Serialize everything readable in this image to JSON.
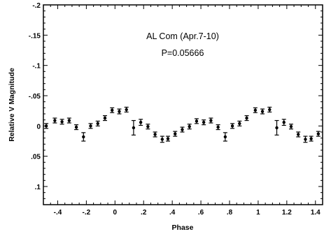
{
  "chart_data": {
    "type": "scatter",
    "title": "",
    "annotations": [
      "AL Com (Apr.7-10)",
      "P=0.05666"
    ],
    "xlabel": "Phase",
    "ylabel": "Relative V Magnitude",
    "xlim": [
      -0.5,
      1.45
    ],
    "ylim": [
      -0.2,
      0.13
    ],
    "y_inverted": true,
    "grid": false,
    "legend": "none",
    "x_tick_labels": [
      {
        "value": -0.4,
        "label": "-.4"
      },
      {
        "value": -0.2,
        "label": "-.2"
      },
      {
        "value": 0,
        "label": "0"
      },
      {
        "value": 0.2,
        "label": ".2"
      },
      {
        "value": 0.4,
        "label": ".4"
      },
      {
        "value": 0.6,
        "label": ".6"
      },
      {
        "value": 0.8,
        "label": ".8"
      },
      {
        "value": 1,
        "label": "1"
      },
      {
        "value": 1.2,
        "label": "1.2"
      },
      {
        "value": 1.4,
        "label": "1.4"
      }
    ],
    "y_tick_labels": [
      {
        "value": -0.2,
        "label": "-.2"
      },
      {
        "value": -0.15,
        "label": "-.15"
      },
      {
        "value": -0.1,
        "label": "-.1"
      },
      {
        "value": -0.05,
        "label": "-.05"
      },
      {
        "value": 0,
        "label": "0"
      },
      {
        "value": 0.05,
        "label": ".05"
      },
      {
        "value": 0.1,
        "label": ".1"
      }
    ],
    "series": [
      {
        "x": [
          -0.48,
          -0.42,
          -0.37,
          -0.32,
          -0.27,
          -0.22,
          -0.17,
          -0.12,
          -0.07,
          -0.02,
          0.03,
          0.08,
          0.13,
          0.18,
          0.23,
          0.28,
          0.33,
          0.37,
          0.42,
          0.47,
          0.52,
          0.57,
          0.62,
          0.67,
          0.72,
          0.77,
          0.82,
          0.87,
          0.92,
          0.98,
          1.03,
          1.08,
          1.13,
          1.18,
          1.23,
          1.28,
          1.33,
          1.37,
          1.42
        ],
        "y": [
          0.0,
          -0.009,
          -0.007,
          -0.009,
          0.002,
          0.018,
          0.0,
          -0.004,
          -0.013,
          -0.026,
          -0.024,
          -0.027,
          0.003,
          -0.006,
          0.001,
          0.014,
          0.022,
          0.021,
          0.013,
          0.006,
          0.001,
          -0.008,
          -0.006,
          -0.009,
          0.002,
          0.018,
          0.0,
          -0.004,
          -0.013,
          -0.026,
          -0.024,
          -0.027,
          0.003,
          -0.006,
          0.001,
          0.014,
          0.022,
          0.021,
          0.013
        ],
        "err": [
          0.004,
          0.004,
          0.004,
          0.004,
          0.004,
          0.007,
          0.004,
          0.004,
          0.004,
          0.004,
          0.004,
          0.004,
          0.012,
          0.005,
          0.004,
          0.004,
          0.005,
          0.004,
          0.004,
          0.004,
          0.004,
          0.004,
          0.004,
          0.004,
          0.004,
          0.007,
          0.004,
          0.004,
          0.004,
          0.004,
          0.004,
          0.004,
          0.012,
          0.005,
          0.004,
          0.004,
          0.005,
          0.004,
          0.004
        ]
      }
    ]
  }
}
